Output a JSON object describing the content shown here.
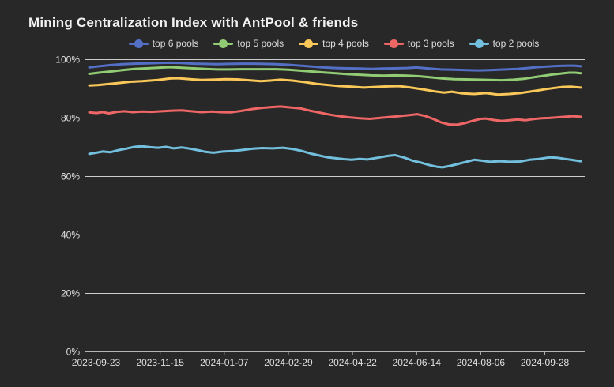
{
  "title": "Mining Centralization Index with AntPool & friends",
  "colors": {
    "background": "#282828",
    "title_text": "#f2f2f2",
    "axis_text": "#e0e0e0",
    "grid_line": "#cccccc",
    "axis_line": "#b5b5b5",
    "legend_text": "#dddddd"
  },
  "chart_data": {
    "type": "line",
    "title": "Mining Centralization Index with AntPool & friends",
    "legend_position": "top-center",
    "grid": true,
    "y_axis": {
      "min": 0,
      "max": 100,
      "tick_values": [
        0,
        20,
        40,
        60,
        80,
        100
      ],
      "tick_labels": [
        "0%",
        "20%",
        "40%",
        "60%",
        "80%",
        "100%"
      ]
    },
    "x_axis": {
      "tick_labels": [
        "2023-09-23",
        "2023-11-15",
        "2024-01-07",
        "2024-02-29",
        "2024-04-22",
        "2024-06-14",
        "2024-08-06",
        "2024-09-28"
      ]
    },
    "series": [
      {
        "name": "top 6 pools",
        "color": "#5470c6",
        "points": [
          [
            113,
            97.2
          ],
          [
            125,
            97.6
          ],
          [
            140,
            98.0
          ],
          [
            155,
            98.3
          ],
          [
            170,
            98.5
          ],
          [
            185,
            98.6
          ],
          [
            200,
            98.7
          ],
          [
            215,
            98.8
          ],
          [
            230,
            98.7
          ],
          [
            245,
            98.5
          ],
          [
            260,
            98.4
          ],
          [
            275,
            98.3
          ],
          [
            290,
            98.4
          ],
          [
            305,
            98.5
          ],
          [
            320,
            98.5
          ],
          [
            335,
            98.4
          ],
          [
            350,
            98.3
          ],
          [
            365,
            98.1
          ],
          [
            380,
            97.8
          ],
          [
            395,
            97.5
          ],
          [
            410,
            97.2
          ],
          [
            425,
            97.0
          ],
          [
            440,
            96.9
          ],
          [
            455,
            96.8
          ],
          [
            470,
            96.7
          ],
          [
            485,
            96.8
          ],
          [
            500,
            96.9
          ],
          [
            515,
            97.0
          ],
          [
            527,
            97.2
          ],
          [
            540,
            96.9
          ],
          [
            558,
            96.5
          ],
          [
            575,
            96.4
          ],
          [
            590,
            96.3
          ],
          [
            605,
            96.2
          ],
          [
            620,
            96.3
          ],
          [
            640,
            96.5
          ],
          [
            655,
            96.7
          ],
          [
            668,
            97.0
          ],
          [
            680,
            97.3
          ],
          [
            692,
            97.5
          ],
          [
            705,
            97.7
          ],
          [
            718,
            97.8
          ],
          [
            727,
            97.8
          ],
          [
            735,
            97.6
          ]
        ]
      },
      {
        "name": "top 5 pools",
        "color": "#91cc75",
        "points": [
          [
            113,
            95.0
          ],
          [
            125,
            95.4
          ],
          [
            140,
            95.8
          ],
          [
            155,
            96.3
          ],
          [
            170,
            96.7
          ],
          [
            185,
            96.9
          ],
          [
            200,
            97.1
          ],
          [
            215,
            97.3
          ],
          [
            230,
            97.1
          ],
          [
            245,
            96.9
          ],
          [
            260,
            96.7
          ],
          [
            275,
            96.5
          ],
          [
            290,
            96.5
          ],
          [
            305,
            96.6
          ],
          [
            320,
            96.6
          ],
          [
            335,
            96.6
          ],
          [
            350,
            96.6
          ],
          [
            365,
            96.4
          ],
          [
            380,
            96.1
          ],
          [
            395,
            95.8
          ],
          [
            410,
            95.5
          ],
          [
            425,
            95.2
          ],
          [
            440,
            94.9
          ],
          [
            455,
            94.7
          ],
          [
            470,
            94.5
          ],
          [
            485,
            94.4
          ],
          [
            500,
            94.5
          ],
          [
            515,
            94.4
          ],
          [
            530,
            94.2
          ],
          [
            545,
            93.8
          ],
          [
            560,
            93.4
          ],
          [
            575,
            93.2
          ],
          [
            590,
            93.1
          ],
          [
            605,
            93.0
          ],
          [
            620,
            92.9
          ],
          [
            635,
            92.8
          ],
          [
            650,
            93.0
          ],
          [
            663,
            93.3
          ],
          [
            675,
            93.8
          ],
          [
            687,
            94.3
          ],
          [
            700,
            94.8
          ],
          [
            710,
            95.1
          ],
          [
            720,
            95.4
          ],
          [
            728,
            95.4
          ],
          [
            735,
            95.2
          ]
        ]
      },
      {
        "name": "top 4 pools",
        "color": "#fac858",
        "points": [
          [
            113,
            91.0
          ],
          [
            125,
            91.2
          ],
          [
            140,
            91.6
          ],
          [
            155,
            92.0
          ],
          [
            165,
            92.3
          ],
          [
            180,
            92.5
          ],
          [
            200,
            92.9
          ],
          [
            215,
            93.4
          ],
          [
            225,
            93.5
          ],
          [
            240,
            93.2
          ],
          [
            255,
            92.9
          ],
          [
            270,
            93.0
          ],
          [
            285,
            93.2
          ],
          [
            300,
            93.1
          ],
          [
            315,
            92.8
          ],
          [
            330,
            92.5
          ],
          [
            342,
            92.7
          ],
          [
            355,
            93.0
          ],
          [
            370,
            92.7
          ],
          [
            385,
            92.2
          ],
          [
            400,
            91.6
          ],
          [
            415,
            91.2
          ],
          [
            430,
            90.8
          ],
          [
            445,
            90.6
          ],
          [
            460,
            90.3
          ],
          [
            475,
            90.5
          ],
          [
            490,
            90.7
          ],
          [
            505,
            90.8
          ],
          [
            520,
            90.3
          ],
          [
            535,
            89.7
          ],
          [
            550,
            89.0
          ],
          [
            562,
            88.6
          ],
          [
            572,
            88.9
          ],
          [
            585,
            88.3
          ],
          [
            600,
            88.1
          ],
          [
            615,
            88.4
          ],
          [
            630,
            87.9
          ],
          [
            645,
            88.1
          ],
          [
            658,
            88.4
          ],
          [
            670,
            88.9
          ],
          [
            680,
            89.3
          ],
          [
            692,
            89.8
          ],
          [
            702,
            90.2
          ],
          [
            712,
            90.5
          ],
          [
            722,
            90.6
          ],
          [
            735,
            90.3
          ]
        ]
      },
      {
        "name": "top 3 pools",
        "color": "#ee6666",
        "points": [
          [
            113,
            81.8
          ],
          [
            122,
            81.6
          ],
          [
            130,
            81.9
          ],
          [
            138,
            81.5
          ],
          [
            148,
            82.0
          ],
          [
            158,
            82.2
          ],
          [
            168,
            81.9
          ],
          [
            180,
            82.1
          ],
          [
            192,
            82.0
          ],
          [
            205,
            82.2
          ],
          [
            218,
            82.4
          ],
          [
            230,
            82.5
          ],
          [
            242,
            82.2
          ],
          [
            255,
            81.9
          ],
          [
            268,
            82.1
          ],
          [
            280,
            81.9
          ],
          [
            292,
            81.8
          ],
          [
            305,
            82.3
          ],
          [
            318,
            82.9
          ],
          [
            330,
            83.3
          ],
          [
            342,
            83.6
          ],
          [
            355,
            83.8
          ],
          [
            368,
            83.5
          ],
          [
            380,
            83.2
          ],
          [
            392,
            82.4
          ],
          [
            405,
            81.7
          ],
          [
            418,
            81.0
          ],
          [
            430,
            80.5
          ],
          [
            442,
            80.1
          ],
          [
            455,
            79.8
          ],
          [
            468,
            79.6
          ],
          [
            480,
            79.9
          ],
          [
            492,
            80.2
          ],
          [
            505,
            80.5
          ],
          [
            518,
            80.9
          ],
          [
            528,
            81.2
          ],
          [
            538,
            80.6
          ],
          [
            548,
            79.6
          ],
          [
            558,
            78.4
          ],
          [
            568,
            77.7
          ],
          [
            578,
            77.6
          ],
          [
            588,
            78.1
          ],
          [
            598,
            78.9
          ],
          [
            608,
            79.6
          ],
          [
            615,
            79.7
          ],
          [
            625,
            79.2
          ],
          [
            635,
            78.9
          ],
          [
            645,
            79.1
          ],
          [
            655,
            79.4
          ],
          [
            665,
            79.1
          ],
          [
            675,
            79.5
          ],
          [
            685,
            79.8
          ],
          [
            695,
            79.9
          ],
          [
            705,
            80.1
          ],
          [
            715,
            80.3
          ],
          [
            725,
            80.5
          ],
          [
            735,
            80.3
          ]
        ]
      },
      {
        "name": "top 2 pools",
        "color": "#73c0de",
        "points": [
          [
            113,
            67.6
          ],
          [
            122,
            68.0
          ],
          [
            130,
            68.4
          ],
          [
            140,
            68.2
          ],
          [
            150,
            68.9
          ],
          [
            160,
            69.4
          ],
          [
            170,
            70.0
          ],
          [
            180,
            70.2
          ],
          [
            190,
            69.9
          ],
          [
            200,
            69.7
          ],
          [
            210,
            70.0
          ],
          [
            220,
            69.5
          ],
          [
            230,
            69.8
          ],
          [
            240,
            69.4
          ],
          [
            250,
            68.9
          ],
          [
            260,
            68.3
          ],
          [
            270,
            68.0
          ],
          [
            282,
            68.4
          ],
          [
            295,
            68.6
          ],
          [
            308,
            69.0
          ],
          [
            320,
            69.4
          ],
          [
            332,
            69.6
          ],
          [
            345,
            69.5
          ],
          [
            358,
            69.7
          ],
          [
            370,
            69.3
          ],
          [
            382,
            68.6
          ],
          [
            395,
            67.6
          ],
          [
            405,
            67.0
          ],
          [
            415,
            66.4
          ],
          [
            425,
            66.1
          ],
          [
            435,
            65.8
          ],
          [
            445,
            65.6
          ],
          [
            455,
            65.9
          ],
          [
            465,
            65.7
          ],
          [
            478,
            66.3
          ],
          [
            490,
            66.9
          ],
          [
            500,
            67.2
          ],
          [
            512,
            66.3
          ],
          [
            522,
            65.3
          ],
          [
            533,
            64.6
          ],
          [
            543,
            63.8
          ],
          [
            553,
            63.2
          ],
          [
            560,
            63.0
          ],
          [
            570,
            63.5
          ],
          [
            580,
            64.2
          ],
          [
            590,
            64.9
          ],
          [
            600,
            65.6
          ],
          [
            610,
            65.3
          ],
          [
            620,
            64.9
          ],
          [
            632,
            65.1
          ],
          [
            645,
            64.9
          ],
          [
            658,
            65.0
          ],
          [
            670,
            65.6
          ],
          [
            682,
            65.9
          ],
          [
            695,
            66.4
          ],
          [
            705,
            66.3
          ],
          [
            715,
            65.9
          ],
          [
            725,
            65.5
          ],
          [
            735,
            65.1
          ]
        ]
      }
    ]
  }
}
